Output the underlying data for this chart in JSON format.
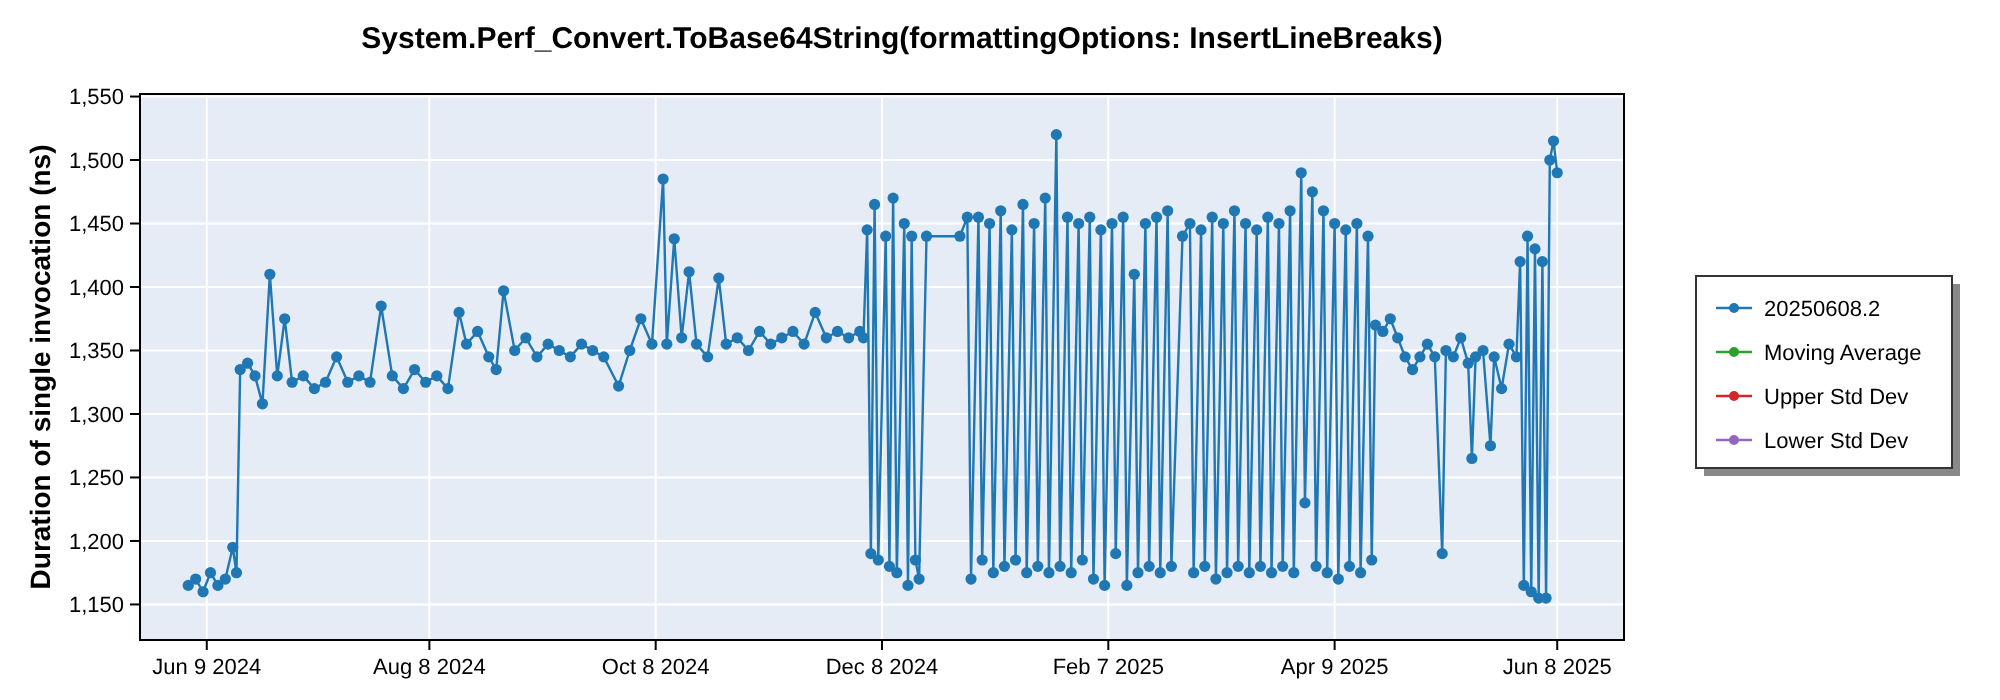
{
  "chart_data": {
    "type": "line",
    "title": "System.Perf_Convert.ToBase64String(formattingOptions: InsertLineBreaks)",
    "ylabel": "Duration of single invocation (ns)",
    "xlim": [
      "2024-05-22",
      "2025-06-26"
    ],
    "ylim": [
      1122,
      1552
    ],
    "xticks": [
      {
        "value": "2024-06-09",
        "label": "Jun 9 2024"
      },
      {
        "value": "2024-08-08",
        "label": "Aug 8 2024"
      },
      {
        "value": "2024-10-08",
        "label": "Oct 8 2024"
      },
      {
        "value": "2024-12-08",
        "label": "Dec 8 2024"
      },
      {
        "value": "2025-02-07",
        "label": "Feb 7 2025"
      },
      {
        "value": "2025-04-09",
        "label": "Apr 9 2025"
      },
      {
        "value": "2025-06-08",
        "label": "Jun 8 2025"
      }
    ],
    "yticks": [
      {
        "value": 1150,
        "label": "1,150"
      },
      {
        "value": 1200,
        "label": "1,200"
      },
      {
        "value": 1250,
        "label": "1,250"
      },
      {
        "value": 1300,
        "label": "1,300"
      },
      {
        "value": 1350,
        "label": "1,350"
      },
      {
        "value": 1400,
        "label": "1,400"
      },
      {
        "value": 1450,
        "label": "1,450"
      },
      {
        "value": 1500,
        "label": "1,500"
      },
      {
        "value": 1550,
        "label": "1,550"
      }
    ],
    "grid": true,
    "legend": "right",
    "marker": "circle",
    "line_style": "solid",
    "x": [
      "2024-06-04",
      "2024-06-06",
      "2024-06-08",
      "2024-06-10",
      "2024-06-12",
      "2024-06-14",
      "2024-06-16",
      "2024-06-17",
      "2024-06-18",
      "2024-06-20",
      "2024-06-22",
      "2024-06-24",
      "2024-06-26",
      "2024-06-28",
      "2024-06-30",
      "2024-07-02",
      "2024-07-05",
      "2024-07-08",
      "2024-07-11",
      "2024-07-14",
      "2024-07-17",
      "2024-07-20",
      "2024-07-23",
      "2024-07-26",
      "2024-07-29",
      "2024-08-01",
      "2024-08-04",
      "2024-08-07",
      "2024-08-10",
      "2024-08-13",
      "2024-08-16",
      "2024-08-18",
      "2024-08-21",
      "2024-08-24",
      "2024-08-26",
      "2024-08-28",
      "2024-08-31",
      "2024-09-03",
      "2024-09-06",
      "2024-09-09",
      "2024-09-12",
      "2024-09-15",
      "2024-09-18",
      "2024-09-21",
      "2024-09-24",
      "2024-09-28",
      "2024-10-01",
      "2024-10-04",
      "2024-10-07",
      "2024-10-10",
      "2024-10-11",
      "2024-10-13",
      "2024-10-15",
      "2024-10-17",
      "2024-10-19",
      "2024-10-22",
      "2024-10-25",
      "2024-10-27",
      "2024-10-30",
      "2024-11-02",
      "2024-11-05",
      "2024-11-08",
      "2024-11-11",
      "2024-11-14",
      "2024-11-17",
      "2024-11-20",
      "2024-11-23",
      "2024-11-26",
      "2024-11-29",
      "2024-12-02",
      "2024-12-03",
      "2024-12-04",
      "2024-12-05",
      "2024-12-06",
      "2024-12-07",
      "2024-12-09",
      "2024-12-10",
      "2024-12-11",
      "2024-12-12",
      "2024-12-14",
      "2024-12-15",
      "2024-12-16",
      "2024-12-17",
      "2024-12-18",
      "2024-12-20",
      "2024-12-29",
      "2024-12-31",
      "2025-01-01",
      "2025-01-03",
      "2025-01-04",
      "2025-01-06",
      "2025-01-07",
      "2025-01-09",
      "2025-01-10",
      "2025-01-12",
      "2025-01-13",
      "2025-01-15",
      "2025-01-16",
      "2025-01-18",
      "2025-01-19",
      "2025-01-21",
      "2025-01-22",
      "2025-01-24",
      "2025-01-25",
      "2025-01-27",
      "2025-01-28",
      "2025-01-30",
      "2025-01-31",
      "2025-02-02",
      "2025-02-03",
      "2025-02-05",
      "2025-02-06",
      "2025-02-08",
      "2025-02-09",
      "2025-02-11",
      "2025-02-12",
      "2025-02-14",
      "2025-02-15",
      "2025-02-17",
      "2025-02-18",
      "2025-02-20",
      "2025-02-21",
      "2025-02-23",
      "2025-02-24",
      "2025-02-27",
      "2025-03-01",
      "2025-03-02",
      "2025-03-04",
      "2025-03-05",
      "2025-03-07",
      "2025-03-08",
      "2025-03-10",
      "2025-03-11",
      "2025-03-13",
      "2025-03-14",
      "2025-03-16",
      "2025-03-17",
      "2025-03-19",
      "2025-03-20",
      "2025-03-22",
      "2025-03-23",
      "2025-03-25",
      "2025-03-26",
      "2025-03-28",
      "2025-03-29",
      "2025-03-31",
      "2025-04-01",
      "2025-04-03",
      "2025-04-04",
      "2025-04-06",
      "2025-04-07",
      "2025-04-09",
      "2025-04-10",
      "2025-04-12",
      "2025-04-13",
      "2025-04-15",
      "2025-04-16",
      "2025-04-18",
      "2025-04-19",
      "2025-04-20",
      "2025-04-22",
      "2025-04-24",
      "2025-04-26",
      "2025-04-28",
      "2025-04-30",
      "2025-05-02",
      "2025-05-04",
      "2025-05-06",
      "2025-05-08",
      "2025-05-09",
      "2025-05-11",
      "2025-05-13",
      "2025-05-15",
      "2025-05-16",
      "2025-05-17",
      "2025-05-19",
      "2025-05-21",
      "2025-05-22",
      "2025-05-24",
      "2025-05-26",
      "2025-05-28",
      "2025-05-29",
      "2025-05-30",
      "2025-05-31",
      "2025-06-01",
      "2025-06-02",
      "2025-06-03",
      "2025-06-04",
      "2025-06-05",
      "2025-06-06",
      "2025-06-07",
      "2025-06-08"
    ],
    "series": [
      {
        "name": "20250608.2",
        "color": "#1f77b4",
        "values": [
          1165,
          1170,
          1160,
          1175,
          1165,
          1170,
          1195,
          1175,
          1335,
          1340,
          1330,
          1308,
          1410,
          1330,
          1375,
          1325,
          1330,
          1320,
          1325,
          1345,
          1325,
          1330,
          1325,
          1385,
          1330,
          1320,
          1335,
          1325,
          1330,
          1320,
          1380,
          1355,
          1365,
          1345,
          1335,
          1397,
          1350,
          1360,
          1345,
          1355,
          1350,
          1345,
          1355,
          1350,
          1345,
          1322,
          1350,
          1375,
          1355,
          1485,
          1355,
          1438,
          1360,
          1412,
          1355,
          1345,
          1407,
          1355,
          1360,
          1350,
          1365,
          1355,
          1360,
          1365,
          1355,
          1380,
          1360,
          1365,
          1360,
          1365,
          1360,
          1445,
          1190,
          1465,
          1185,
          1440,
          1180,
          1470,
          1175,
          1450,
          1165,
          1440,
          1185,
          1170,
          1440,
          1440,
          1455,
          1170,
          1455,
          1185,
          1450,
          1175,
          1460,
          1180,
          1445,
          1185,
          1465,
          1175,
          1450,
          1180,
          1470,
          1175,
          1520,
          1180,
          1455,
          1175,
          1450,
          1185,
          1455,
          1170,
          1445,
          1165,
          1450,
          1190,
          1455,
          1165,
          1410,
          1175,
          1450,
          1180,
          1455,
          1175,
          1460,
          1180,
          1440,
          1450,
          1175,
          1445,
          1180,
          1455,
          1170,
          1450,
          1175,
          1460,
          1180,
          1450,
          1175,
          1445,
          1180,
          1455,
          1175,
          1450,
          1180,
          1460,
          1175,
          1490,
          1230,
          1475,
          1180,
          1460,
          1175,
          1450,
          1170,
          1445,
          1180,
          1450,
          1175,
          1440,
          1185,
          1370,
          1365,
          1375,
          1360,
          1345,
          1335,
          1345,
          1355,
          1345,
          1190,
          1350,
          1345,
          1360,
          1340,
          1265,
          1345,
          1350,
          1275,
          1345,
          1320,
          1355,
          1345,
          1420,
          1165,
          1440,
          1160,
          1430,
          1155,
          1420,
          1155,
          1500,
          1515,
          1490
        ]
      },
      {
        "name": "Moving Average",
        "color": "#2ca02c",
        "values": [
          null,
          null,
          null,
          null,
          null,
          null,
          null,
          null,
          null,
          null,
          null,
          null,
          null,
          null,
          null,
          null,
          null,
          null,
          null,
          null,
          null,
          null,
          null,
          null,
          null,
          null,
          null,
          null,
          null,
          null,
          null,
          null,
          null,
          null,
          null,
          null,
          null,
          null,
          null,
          null,
          null,
          null,
          null,
          null,
          null,
          null,
          null,
          null,
          null,
          null,
          null,
          null,
          null,
          null,
          null,
          null,
          null,
          null,
          null,
          null,
          null,
          null,
          null,
          null,
          null,
          null,
          null,
          null,
          null,
          null,
          null,
          null,
          null,
          null,
          null,
          null,
          null,
          null,
          null,
          null,
          null,
          null,
          null,
          null,
          null,
          null,
          null,
          null,
          null,
          null,
          null,
          null,
          null,
          null,
          null,
          null,
          null,
          null,
          null,
          null,
          null,
          null,
          null,
          null,
          null,
          null,
          null,
          null,
          null,
          null,
          null,
          null,
          null,
          null,
          null,
          null,
          null,
          null,
          null,
          null,
          null,
          null,
          null,
          null,
          null,
          null,
          null,
          null,
          null,
          null,
          null,
          null,
          null,
          null,
          null,
          null,
          null,
          null,
          null,
          null,
          null,
          null,
          null,
          null,
          null,
          null,
          null,
          null,
          null,
          null,
          null,
          null,
          null,
          null,
          null,
          null,
          null,
          null,
          null,
          null,
          null,
          null,
          null,
          null,
          null,
          null,
          null,
          null,
          null,
          null,
          null,
          null,
          null,
          null,
          null,
          null,
          null,
          null,
          null,
          null,
          null,
          null,
          null,
          null,
          null,
          null,
          null,
          null,
          null,
          null,
          null,
          null
        ]
      },
      {
        "name": "Upper Std Dev",
        "color": "#d62728",
        "values": [
          null,
          null,
          null,
          null,
          null,
          null,
          null,
          null,
          null,
          null,
          null,
          null,
          null,
          null,
          null,
          null,
          null,
          null,
          null,
          null,
          null,
          null,
          null,
          null,
          null,
          null,
          null,
          null,
          null,
          null,
          null,
          null,
          null,
          null,
          null,
          null,
          null,
          null,
          null,
          null,
          null,
          null,
          null,
          null,
          null,
          null,
          null,
          null,
          null,
          null,
          null,
          null,
          null,
          null,
          null,
          null,
          null,
          null,
          null,
          null,
          null,
          null,
          null,
          null,
          null,
          null,
          null,
          null,
          null,
          null,
          null,
          null,
          null,
          null,
          null,
          null,
          null,
          null,
          null,
          null,
          null,
          null,
          null,
          null,
          null,
          null,
          null,
          null,
          null,
          null,
          null,
          null,
          null,
          null,
          null,
          null,
          null,
          null,
          null,
          null,
          null,
          null,
          null,
          null,
          null,
          null,
          null,
          null,
          null,
          null,
          null,
          null,
          null,
          null,
          null,
          null,
          null,
          null,
          null,
          null,
          null,
          null,
          null,
          null,
          null,
          null,
          null,
          null,
          null,
          null,
          null,
          null,
          null,
          null,
          null,
          null,
          null,
          null,
          null,
          null,
          null,
          null,
          null,
          null,
          null,
          null,
          null,
          null,
          null,
          null,
          null,
          null,
          null,
          null,
          null,
          null,
          null,
          null,
          null,
          null,
          null,
          null,
          null,
          null,
          null,
          null,
          null,
          null,
          null,
          null,
          null,
          null,
          null,
          null,
          null,
          null,
          null,
          null,
          null,
          null,
          null,
          null,
          null,
          null,
          null,
          null,
          null,
          null,
          null,
          null,
          null,
          null
        ]
      },
      {
        "name": "Lower Std Dev",
        "color": "#9467bd",
        "values": [
          null,
          null,
          null,
          null,
          null,
          null,
          null,
          null,
          null,
          null,
          null,
          null,
          null,
          null,
          null,
          null,
          null,
          null,
          null,
          null,
          null,
          null,
          null,
          null,
          null,
          null,
          null,
          null,
          null,
          null,
          null,
          null,
          null,
          null,
          null,
          null,
          null,
          null,
          null,
          null,
          null,
          null,
          null,
          null,
          null,
          null,
          null,
          null,
          null,
          null,
          null,
          null,
          null,
          null,
          null,
          null,
          null,
          null,
          null,
          null,
          null,
          null,
          null,
          null,
          null,
          null,
          null,
          null,
          null,
          null,
          null,
          null,
          null,
          null,
          null,
          null,
          null,
          null,
          null,
          null,
          null,
          null,
          null,
          null,
          null,
          null,
          null,
          null,
          null,
          null,
          null,
          null,
          null,
          null,
          null,
          null,
          null,
          null,
          null,
          null,
          null,
          null,
          null,
          null,
          null,
          null,
          null,
          null,
          null,
          null,
          null,
          null,
          null,
          null,
          null,
          null,
          null,
          null,
          null,
          null,
          null,
          null,
          null,
          null,
          null,
          null,
          null,
          null,
          null,
          null,
          null,
          null,
          null,
          null,
          null,
          null,
          null,
          null,
          null,
          null,
          null,
          null,
          null,
          null,
          null,
          null,
          null,
          null,
          null,
          null,
          null,
          null,
          null,
          null,
          null,
          null,
          null,
          null,
          null,
          null,
          null,
          null,
          null,
          null,
          null,
          null,
          null,
          null,
          null,
          null,
          null,
          null,
          null,
          null,
          null,
          null,
          null,
          null,
          null,
          null,
          null,
          null,
          null,
          null,
          null,
          null,
          null,
          null,
          null,
          null,
          null,
          null
        ]
      }
    ]
  }
}
